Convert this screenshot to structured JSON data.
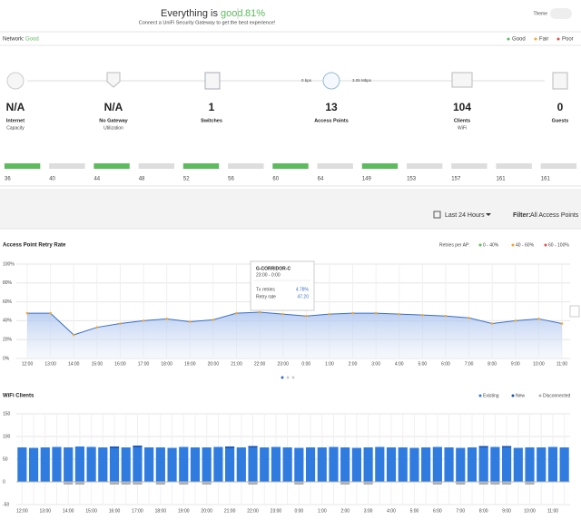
{
  "header": {
    "title_prefix": "Everything is",
    "title_status": "good.",
    "score": "81%",
    "subtitle": "Connect a UniFi Security Gateway to get the best experience!",
    "theme": "Theme"
  },
  "network": {
    "label": "Network:",
    "status": "Good",
    "legend": [
      "Good",
      "Fair",
      "Poor"
    ]
  },
  "topology": {
    "upload": "0 bps",
    "download": "3.05 Mbps"
  },
  "stats": [
    {
      "value": "N/A",
      "label": "Internet",
      "sub": "Capacity"
    },
    {
      "value": "N/A",
      "label": "No Gateway",
      "sub": "Utilization"
    },
    {
      "value": "1",
      "label": "Switches"
    },
    {
      "value": "13",
      "label": "Access Points"
    },
    {
      "value": "104",
      "label": "Clients",
      "sub": "WiFi"
    },
    {
      "value": "0",
      "label": "Guests"
    }
  ],
  "channels": {
    "labels": [
      "36",
      "40",
      "44",
      "48",
      "52",
      "56",
      "60",
      "64",
      "149",
      "153",
      "157",
      "161",
      "161"
    ],
    "colors": [
      "#5cbb5c",
      "#dddddd",
      "#5cbb5c",
      "#dddddd",
      "#5cbb5c",
      "#dddddd",
      "#5cbb5c",
      "#dddddd",
      "#5cbb5c",
      "#dddddd",
      "#dddddd",
      "#dddddd",
      "#dddddd"
    ]
  },
  "filter": {
    "range": "Last 24 Hours",
    "label": "Filter:",
    "value": "All Access Points"
  },
  "chart_data": [
    {
      "type": "line",
      "title": "Access Point Retry Rate",
      "legend_title": "Retries per AP:",
      "legend": [
        {
          "label": "0 - 40%",
          "color": "#5cbb5c"
        },
        {
          "label": "40 - 60%",
          "color": "#f0a830"
        },
        {
          "label": "60 - 100%",
          "color": "#e05050"
        }
      ],
      "categories": [
        "12:00",
        "13:00",
        "14:00",
        "15:00",
        "16:00",
        "17:00",
        "18:00",
        "19:00",
        "20:00",
        "21:00",
        "22:00",
        "23:00",
        "0:00",
        "1:00",
        "2:00",
        "3:00",
        "4:00",
        "5:00",
        "6:00",
        "7:00",
        "8:00",
        "9:00",
        "10:00",
        "11:00"
      ],
      "series": [
        {
          "color": "#3a6ec4",
          "values": [
            48,
            48,
            25,
            33,
            37,
            40,
            42,
            39,
            41,
            48,
            49,
            47,
            45,
            47,
            48,
            48,
            47,
            46,
            45,
            43,
            37,
            40,
            42,
            37
          ]
        }
      ],
      "ylim": [
        0,
        100
      ],
      "yticks": [
        {
          "value": 0,
          "label": "0%"
        },
        {
          "value": 20,
          "label": "20%"
        },
        {
          "value": 40,
          "label": "40%"
        },
        {
          "value": 60,
          "label": "60%"
        },
        {
          "value": 80,
          "label": "80%"
        },
        {
          "value": 100,
          "label": "100%"
        }
      ],
      "grid": true,
      "tooltip": {
        "title": "G-CORRIDOR-C",
        "time": "23:00 - 0:00",
        "rows": [
          [
            "Tx retries",
            "4.78%"
          ],
          [
            "Retry rate",
            "47.20"
          ]
        ]
      }
    },
    {
      "type": "bar",
      "title": "WiFi Clients",
      "categories": [
        "12:00",
        null,
        "13:00",
        null,
        "14:00",
        null,
        "15:00",
        null,
        "16:00",
        null,
        "17:00",
        null,
        "18:00",
        null,
        "19:00",
        null,
        "20:00",
        null,
        "21:00",
        null,
        "22:00",
        null,
        "23:00",
        null,
        "0:00",
        null,
        "1:00",
        null,
        "2:00",
        null,
        "3:00",
        null,
        "4:00",
        null,
        "5:00",
        null,
        "6:00",
        null,
        "7:00",
        null,
        "8:00",
        null,
        "9:00",
        null,
        "10:00",
        null,
        "11:00",
        null
      ],
      "series": [
        {
          "name": "Existing",
          "color": "#2f7be0",
          "values": [
            76,
            75,
            76,
            77,
            76,
            78,
            77,
            76,
            75,
            76,
            77,
            76,
            76,
            75,
            77,
            76,
            76,
            77,
            75,
            76,
            76,
            76,
            77,
            76,
            75,
            76,
            76,
            77,
            76,
            75,
            76,
            77,
            76,
            76,
            75,
            76,
            77,
            76,
            75,
            76,
            76,
            77,
            76,
            75,
            76,
            76,
            77,
            76
          ]
        },
        {
          "name": "New",
          "color": "#1a4fa8",
          "values": [
            0,
            0,
            0,
            0,
            0,
            0,
            0,
            0,
            3,
            0,
            3,
            0,
            0,
            0,
            0,
            0,
            0,
            0,
            3,
            0,
            3,
            0,
            0,
            0,
            0,
            0,
            0,
            0,
            0,
            0,
            0,
            0,
            0,
            0,
            0,
            0,
            0,
            0,
            0,
            0,
            3,
            0,
            3,
            0,
            0,
            0,
            0,
            0
          ]
        },
        {
          "name": "Disconnected",
          "color": "#b0b0b0",
          "values": [
            0,
            0,
            0,
            0,
            -6,
            -6,
            0,
            0,
            -6,
            -6,
            -6,
            0,
            -6,
            0,
            -6,
            0,
            -6,
            0,
            0,
            0,
            -6,
            0,
            0,
            0,
            -6,
            0,
            0,
            0,
            -6,
            0,
            -6,
            0,
            0,
            0,
            0,
            0,
            -6,
            0,
            -6,
            0,
            -6,
            -6,
            -6,
            0,
            -6,
            0,
            0,
            0
          ]
        }
      ],
      "ylim": [
        -50,
        150
      ],
      "yticks": [
        -50,
        0,
        50,
        100,
        150
      ],
      "grid": true
    }
  ]
}
